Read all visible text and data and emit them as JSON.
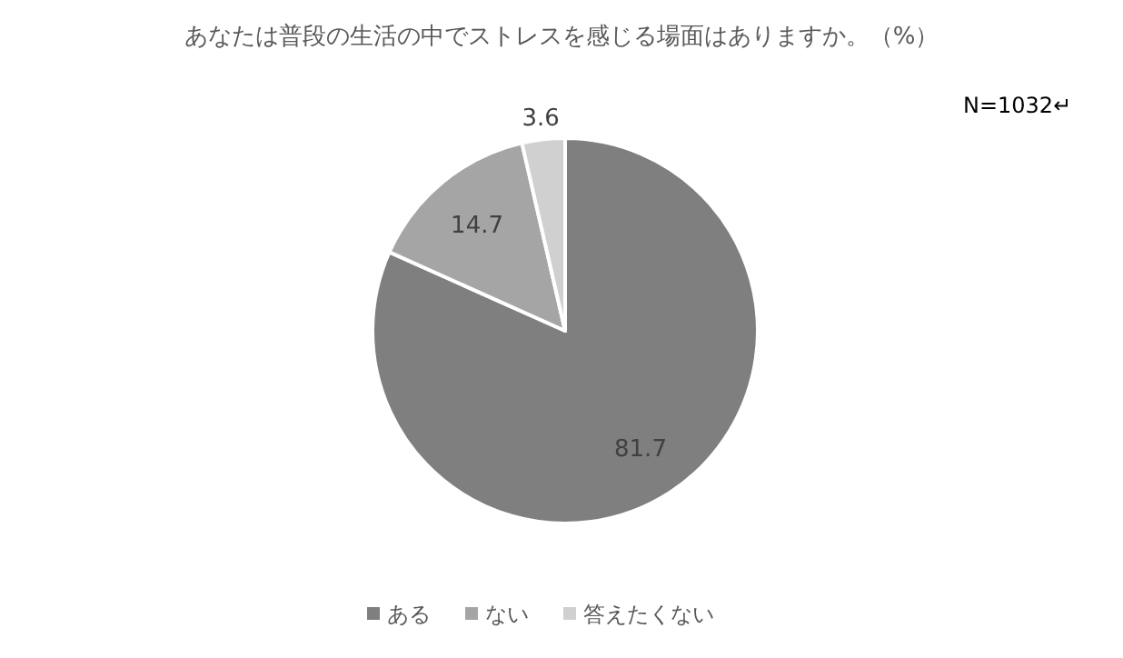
{
  "chart_data": {
    "type": "pie",
    "title": "あなたは普段の生活の中でストレスを感じる場面はありますか。（%）",
    "annotations": [
      "N=1032↵"
    ],
    "categories": [
      "ある",
      "ない",
      "答えたくない"
    ],
    "values": [
      81.7,
      14.7,
      3.6
    ],
    "colors": [
      "#7f7f7f",
      "#a5a5a5",
      "#d0d0d0"
    ],
    "data_labels": true,
    "legend": "bottom"
  }
}
